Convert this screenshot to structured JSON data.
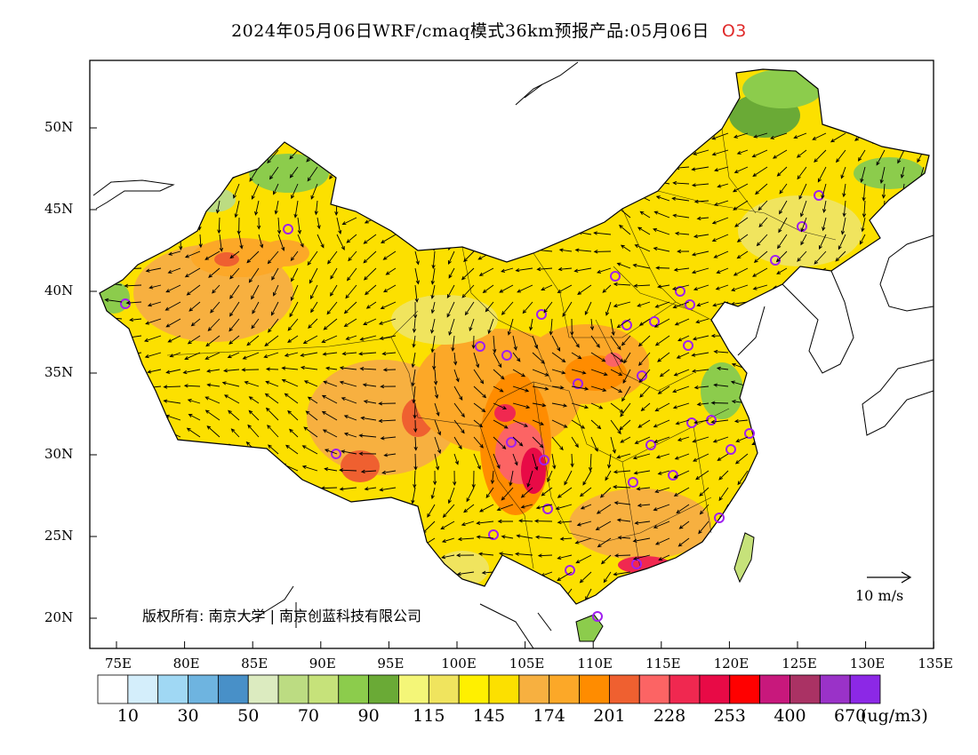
{
  "header": {
    "title": "2024年05月06日WRF/cmaq模式36km预报产品:05月06日",
    "species": "O3"
  },
  "axes": {
    "lon_labels": [
      "75E",
      "80E",
      "85E",
      "90E",
      "95E",
      "100E",
      "105E",
      "110E",
      "115E",
      "120E",
      "125E",
      "130E",
      "135E"
    ],
    "lat_labels": [
      "50N",
      "45N",
      "40N",
      "35N",
      "30N",
      "25N",
      "20N"
    ]
  },
  "copyright": "版权所有: 南京大学 | 南京创蓝科技有限公司",
  "wind_scale": {
    "label": "10 m/s"
  },
  "colorbar": {
    "colors": [
      "#ffffff",
      "#d4eefb",
      "#a0d8f4",
      "#6eb4e0",
      "#4890c8",
      "#dcebc0",
      "#bcdc82",
      "#c6e27a",
      "#8ccc4c",
      "#6aaa36",
      "#f4f678",
      "#f0e45e",
      "#fff000",
      "#fce000",
      "#f7b040",
      "#fca828",
      "#ff8c00",
      "#ef6030",
      "#fc6464",
      "#f02850",
      "#e80a46",
      "#ff0000",
      "#c8187c",
      "#aa3264",
      "#9a32c8",
      "#8c28e6"
    ],
    "labels": [
      "10",
      "30",
      "50",
      "70",
      "90",
      "115",
      "145",
      "174",
      "201",
      "228",
      "253",
      "400",
      "670"
    ],
    "unit": "(ug/m3)"
  },
  "colors": {
    "ocean": "#ffffff",
    "boundary": "#000000",
    "title_species": "#e02a2a",
    "station": "#a020f0"
  }
}
